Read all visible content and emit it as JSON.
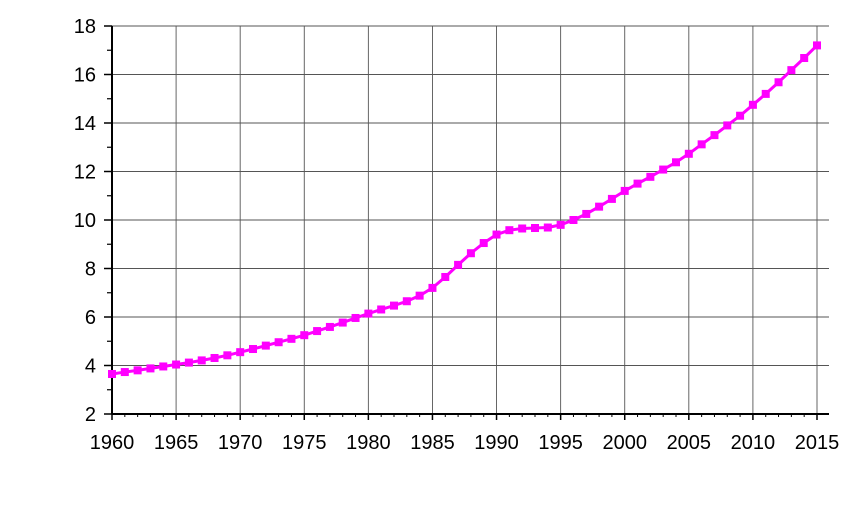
{
  "chart_data": {
    "type": "line",
    "title": "",
    "xlabel": "",
    "ylabel": "",
    "xlim": [
      1960,
      2015
    ],
    "ylim": [
      2,
      18
    ],
    "grid": true,
    "legend": "none",
    "x_ticks": [
      1960,
      1965,
      1970,
      1975,
      1980,
      1985,
      1990,
      1995,
      2000,
      2005,
      2010,
      2015
    ],
    "y_ticks": [
      2,
      4,
      6,
      8,
      10,
      12,
      14,
      16,
      18
    ],
    "colors": {
      "series": "#ff00ff",
      "axis": "#000000",
      "grid": "#555555",
      "background": "#ffffff"
    },
    "marker": "square",
    "series": [
      {
        "x": [
          1960,
          1961,
          1962,
          1963,
          1964,
          1965,
          1966,
          1967,
          1968,
          1969,
          1970,
          1971,
          1972,
          1973,
          1974,
          1975,
          1976,
          1977,
          1978,
          1979,
          1980,
          1981,
          1982,
          1983,
          1984,
          1985,
          1986,
          1987,
          1988,
          1989,
          1990,
          1991,
          1992,
          1993,
          1994,
          1995,
          1996,
          1997,
          1998,
          1999,
          2000,
          2001,
          2002,
          2003,
          2004,
          2005,
          2006,
          2007,
          2008,
          2009,
          2010,
          2011,
          2012,
          2013,
          2014,
          2015
        ],
        "values": [
          3.65,
          3.73,
          3.8,
          3.88,
          3.96,
          4.04,
          4.12,
          4.21,
          4.31,
          4.42,
          4.55,
          4.68,
          4.82,
          4.96,
          5.1,
          5.25,
          5.42,
          5.59,
          5.77,
          5.96,
          6.14,
          6.31,
          6.47,
          6.65,
          6.88,
          7.2,
          7.65,
          8.15,
          8.63,
          9.05,
          9.4,
          9.58,
          9.65,
          9.67,
          9.69,
          9.8,
          10.0,
          10.25,
          10.55,
          10.87,
          11.2,
          11.5,
          11.78,
          12.08,
          12.38,
          12.73,
          13.12,
          13.5,
          13.9,
          14.3,
          14.75,
          15.2,
          15.68,
          16.18,
          16.68,
          17.2
        ]
      }
    ]
  }
}
